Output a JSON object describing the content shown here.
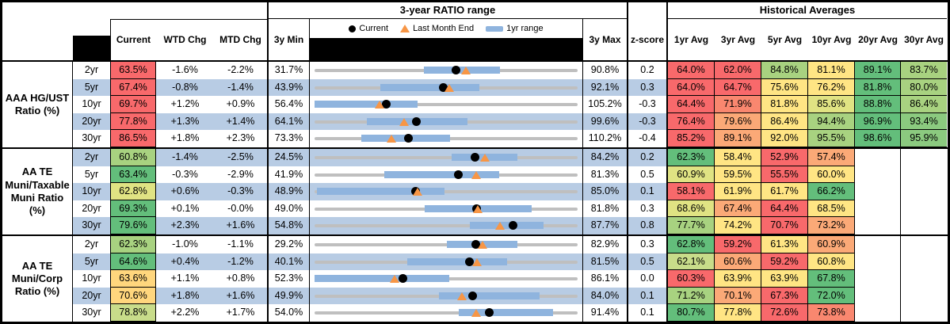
{
  "header": {
    "ratio_range_title": "3-year RATIO range",
    "historical_title": "Historical Averages",
    "col_current": "Current",
    "col_wtd": "WTD Chg",
    "col_mtd": "MTD Chg",
    "col_min": "3y Min",
    "col_max": "3y Max",
    "col_zscore": "z-score",
    "avg_cols": [
      "1yr Avg",
      "3yr Avg",
      "5yr Avg",
      "10yr Avg",
      "20yr Avg",
      "30yr Avg"
    ]
  },
  "legend": {
    "dot_icon": "current-dot-icon",
    "current": "Current",
    "triangle_icon": "last-month-end-triangle-icon",
    "last_month": "Last Month End",
    "bar_icon": "1yr-range-bar-icon",
    "range": "1yr range"
  },
  "palette": {
    "red": "#F8696B",
    "salmon": "#F9876F",
    "orange": "#FBA977",
    "gold": "#FFD67D",
    "yellow": "#FFE584",
    "khaki": "#E0E383",
    "yellowgreen": "#C8DC8A",
    "lightgreen": "#A8D280",
    "midgreen": "#8BCA7F",
    "green": "#63BE7B",
    "stripe": "#B8CCE4",
    "bar": "#8FB4DE",
    "line": "#BFBFBF",
    "triangle": "#F79646",
    "dot": "#000000"
  },
  "groups": [
    {
      "label": "AAA HG/UST\nRatio (%)",
      "rows": [
        {
          "tenor": "2yr",
          "stripe": false,
          "current": "63.5%",
          "current_color": "red",
          "wtd": "-1.6%",
          "mtd": "-2.2%",
          "min": "31.7%",
          "max": "90.8%",
          "zscore": "0.2",
          "bar": [
            0.417,
            0.704
          ],
          "dot": 0.538,
          "tri": 0.574,
          "avgs": [
            {
              "v": "64.0%",
              "c": "red"
            },
            {
              "v": "62.0%",
              "c": "red"
            },
            {
              "v": "84.8%",
              "c": "lightgreen"
            },
            {
              "v": "81.1%",
              "c": "yellow"
            },
            {
              "v": "89.1%",
              "c": "green"
            },
            {
              "v": "83.7%",
              "c": "lightgreen"
            }
          ]
        },
        {
          "tenor": "5yr",
          "stripe": true,
          "current": "67.4%",
          "current_color": "red",
          "wtd": "-0.8%",
          "mtd": "-1.4%",
          "min": "43.9%",
          "max": "92.1%",
          "zscore": "0.3",
          "bar": [
            0.251,
            0.628
          ],
          "dot": 0.489,
          "tri": 0.513,
          "avgs": [
            {
              "v": "64.0%",
              "c": "red"
            },
            {
              "v": "64.7%",
              "c": "red"
            },
            {
              "v": "75.6%",
              "c": "yellow"
            },
            {
              "v": "76.2%",
              "c": "yellow"
            },
            {
              "v": "81.8%",
              "c": "green"
            },
            {
              "v": "80.0%",
              "c": "lightgreen"
            }
          ]
        },
        {
          "tenor": "10yr",
          "stripe": false,
          "current": "69.7%",
          "current_color": "red",
          "wtd": "+1.2%",
          "mtd": "+0.9%",
          "min": "56.4%",
          "max": "105.2%",
          "zscore": "-0.3",
          "bar": [
            0.0,
            0.393
          ],
          "dot": 0.272,
          "tri": 0.248,
          "avgs": [
            {
              "v": "64.4%",
              "c": "red"
            },
            {
              "v": "71.9%",
              "c": "salmon"
            },
            {
              "v": "81.8%",
              "c": "yellow"
            },
            {
              "v": "85.6%",
              "c": "khaki"
            },
            {
              "v": "88.8%",
              "c": "green"
            },
            {
              "v": "86.4%",
              "c": "lightgreen"
            }
          ]
        },
        {
          "tenor": "20yr",
          "stripe": true,
          "current": "77.8%",
          "current_color": "red",
          "wtd": "+1.3%",
          "mtd": "+1.4%",
          "min": "64.1%",
          "max": "99.6%",
          "zscore": "-0.3",
          "bar": [
            0.199,
            0.58
          ],
          "dot": 0.386,
          "tri": 0.341,
          "avgs": [
            {
              "v": "76.4%",
              "c": "red"
            },
            {
              "v": "79.6%",
              "c": "orange"
            },
            {
              "v": "86.4%",
              "c": "yellow"
            },
            {
              "v": "94.4%",
              "c": "lightgreen"
            },
            {
              "v": "96.9%",
              "c": "green"
            },
            {
              "v": "93.4%",
              "c": "midgreen"
            }
          ]
        },
        {
          "tenor": "30yr",
          "stripe": false,
          "current": "86.5%",
          "current_color": "red",
          "wtd": "+1.8%",
          "mtd": "+2.3%",
          "min": "73.3%",
          "max": "110.2%",
          "zscore": "-0.4",
          "bar": [
            0.178,
            0.514
          ],
          "dot": 0.357,
          "tri": 0.293,
          "avgs": [
            {
              "v": "85.2%",
              "c": "red"
            },
            {
              "v": "89.1%",
              "c": "orange"
            },
            {
              "v": "92.0%",
              "c": "yellow"
            },
            {
              "v": "95.5%",
              "c": "lightgreen"
            },
            {
              "v": "98.6%",
              "c": "green"
            },
            {
              "v": "95.9%",
              "c": "midgreen"
            }
          ]
        }
      ]
    },
    {
      "label": "AA TE\nMuni/Taxable\nMuni Ratio\n(%)",
      "rows": [
        {
          "tenor": "2yr",
          "stripe": true,
          "current": "60.8%",
          "current_color": "lightgreen",
          "wtd": "-1.4%",
          "mtd": "-2.5%",
          "min": "24.5%",
          "max": "84.2%",
          "zscore": "0.2",
          "bar": [
            0.52,
            0.77
          ],
          "dot": 0.61,
          "tri": 0.649,
          "avgs": [
            {
              "v": "62.3%",
              "c": "green"
            },
            {
              "v": "58.4%",
              "c": "yellow"
            },
            {
              "v": "52.9%",
              "c": "red"
            },
            {
              "v": "57.4%",
              "c": "orange"
            },
            {
              "v": "",
              "c": ""
            },
            {
              "v": "",
              "c": ""
            }
          ]
        },
        {
          "tenor": "5yr",
          "stripe": false,
          "current": "63.4%",
          "current_color": "green",
          "wtd": "-0.3%",
          "mtd": "-2.9%",
          "min": "41.9%",
          "max": "81.3%",
          "zscore": "0.5",
          "bar": [
            0.266,
            0.701
          ],
          "dot": 0.547,
          "tri": 0.613,
          "avgs": [
            {
              "v": "60.9%",
              "c": "khaki"
            },
            {
              "v": "59.5%",
              "c": "yellow"
            },
            {
              "v": "55.5%",
              "c": "red"
            },
            {
              "v": "60.0%",
              "c": "yellow"
            },
            {
              "v": "",
              "c": ""
            },
            {
              "v": "",
              "c": ""
            }
          ]
        },
        {
          "tenor": "10yr",
          "stripe": true,
          "current": "62.8%",
          "current_color": "khaki",
          "wtd": "+0.6%",
          "mtd": "-0.3%",
          "min": "48.9%",
          "max": "85.0%",
          "zscore": "0.1",
          "bar": [
            0.009,
            0.495
          ],
          "dot": 0.384,
          "tri": 0.393,
          "avgs": [
            {
              "v": "58.1%",
              "c": "red"
            },
            {
              "v": "61.9%",
              "c": "yellow"
            },
            {
              "v": "61.7%",
              "c": "yellow"
            },
            {
              "v": "66.2%",
              "c": "green"
            },
            {
              "v": "",
              "c": ""
            },
            {
              "v": "",
              "c": ""
            }
          ]
        },
        {
          "tenor": "20yr",
          "stripe": false,
          "current": "69.3%",
          "current_color": "green",
          "wtd": "+0.1%",
          "mtd": "-0.0%",
          "min": "49.0%",
          "max": "81.8%",
          "zscore": "0.3",
          "bar": [
            0.42,
            0.825
          ],
          "dot": 0.617,
          "tri": 0.621,
          "avgs": [
            {
              "v": "68.6%",
              "c": "khaki"
            },
            {
              "v": "67.4%",
              "c": "orange"
            },
            {
              "v": "64.4%",
              "c": "red"
            },
            {
              "v": "68.5%",
              "c": "yellow"
            },
            {
              "v": "",
              "c": ""
            },
            {
              "v": "",
              "c": ""
            }
          ]
        },
        {
          "tenor": "30yr",
          "stripe": true,
          "current": "79.6%",
          "current_color": "green",
          "wtd": "+2.3%",
          "mtd": "+1.6%",
          "min": "54.8%",
          "max": "87.7%",
          "zscore": "0.8",
          "bar": [
            0.589,
            0.87
          ],
          "dot": 0.755,
          "tri": 0.704,
          "avgs": [
            {
              "v": "77.7%",
              "c": "lightgreen"
            },
            {
              "v": "74.2%",
              "c": "yellow"
            },
            {
              "v": "70.7%",
              "c": "red"
            },
            {
              "v": "73.2%",
              "c": "orange"
            },
            {
              "v": "",
              "c": ""
            },
            {
              "v": "",
              "c": ""
            }
          ]
        }
      ]
    },
    {
      "label": "AA TE\nMuni/Corp\nRatio (%)",
      "rows": [
        {
          "tenor": "2yr",
          "stripe": false,
          "current": "62.3%",
          "current_color": "lightgreen",
          "wtd": "-1.0%",
          "mtd": "-1.1%",
          "min": "29.2%",
          "max": "82.9%",
          "zscore": "0.3",
          "bar": [
            0.504,
            0.772
          ],
          "dot": 0.613,
          "tri": 0.64,
          "avgs": [
            {
              "v": "62.8%",
              "c": "green"
            },
            {
              "v": "59.2%",
              "c": "red"
            },
            {
              "v": "61.3%",
              "c": "yellow"
            },
            {
              "v": "60.9%",
              "c": "orange"
            },
            {
              "v": "",
              "c": ""
            },
            {
              "v": "",
              "c": ""
            }
          ]
        },
        {
          "tenor": "5yr",
          "stripe": true,
          "current": "64.6%",
          "current_color": "green",
          "wtd": "+0.4%",
          "mtd": "-1.2%",
          "min": "40.1%",
          "max": "81.5%",
          "zscore": "0.5",
          "bar": [
            0.353,
            0.733
          ],
          "dot": 0.589,
          "tri": 0.616,
          "avgs": [
            {
              "v": "62.1%",
              "c": "yellowgreen"
            },
            {
              "v": "60.6%",
              "c": "orange"
            },
            {
              "v": "59.2%",
              "c": "red"
            },
            {
              "v": "60.8%",
              "c": "yellow"
            },
            {
              "v": "",
              "c": ""
            },
            {
              "v": "",
              "c": ""
            }
          ]
        },
        {
          "tenor": "10yr",
          "stripe": false,
          "current": "63.6%",
          "current_color": "gold",
          "wtd": "+1.1%",
          "mtd": "+0.8%",
          "min": "52.3%",
          "max": "86.1%",
          "zscore": "0.0",
          "bar": [
            0.0,
            0.511
          ],
          "dot": 0.335,
          "tri": 0.305,
          "avgs": [
            {
              "v": "60.3%",
              "c": "red"
            },
            {
              "v": "63.9%",
              "c": "yellow"
            },
            {
              "v": "63.9%",
              "c": "yellow"
            },
            {
              "v": "67.8%",
              "c": "green"
            },
            {
              "v": "",
              "c": ""
            },
            {
              "v": "",
              "c": ""
            }
          ]
        },
        {
          "tenor": "20yr",
          "stripe": true,
          "current": "70.6%",
          "current_color": "gold",
          "wtd": "+1.8%",
          "mtd": "+1.6%",
          "min": "49.9%",
          "max": "84.0%",
          "zscore": "0.1",
          "bar": [
            0.473,
            0.854
          ],
          "dot": 0.601,
          "tri": 0.561,
          "avgs": [
            {
              "v": "71.2%",
              "c": "lightgreen"
            },
            {
              "v": "70.1%",
              "c": "orange"
            },
            {
              "v": "67.3%",
              "c": "red"
            },
            {
              "v": "72.0%",
              "c": "green"
            },
            {
              "v": "",
              "c": ""
            },
            {
              "v": "",
              "c": ""
            }
          ]
        },
        {
          "tenor": "30yr",
          "stripe": false,
          "current": "78.8%",
          "current_color": "yellowgreen",
          "wtd": "+2.2%",
          "mtd": "+1.7%",
          "min": "54.0%",
          "max": "91.4%",
          "zscore": "0.1",
          "bar": [
            0.549,
            0.907
          ],
          "dot": 0.663,
          "tri": 0.614,
          "avgs": [
            {
              "v": "80.7%",
              "c": "green"
            },
            {
              "v": "77.8%",
              "c": "yellow"
            },
            {
              "v": "72.6%",
              "c": "red"
            },
            {
              "v": "73.8%",
              "c": "salmon"
            },
            {
              "v": "",
              "c": ""
            },
            {
              "v": "",
              "c": ""
            }
          ]
        }
      ]
    }
  ]
}
